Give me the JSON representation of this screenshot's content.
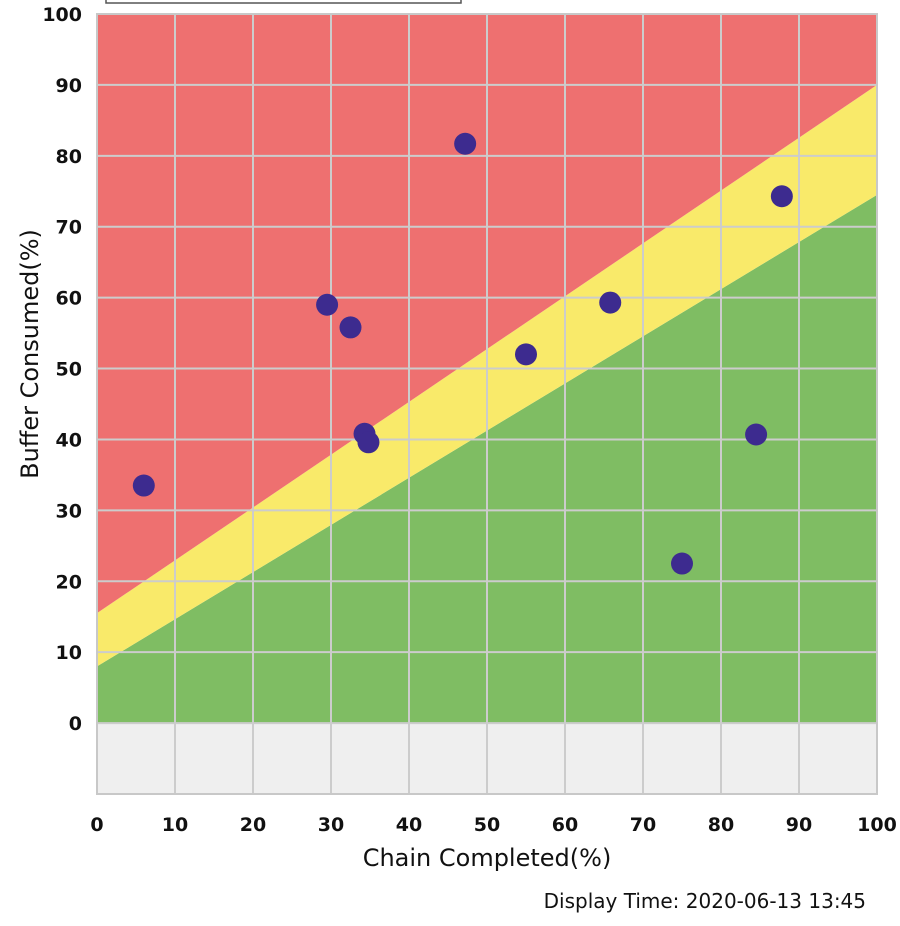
{
  "legend_box": {
    "visible": true,
    "position": "top",
    "text": ""
  },
  "chart_data": {
    "type": "scatter",
    "title": "",
    "xlabel": "Chain Completed(%)",
    "ylabel": "Buffer Consumed(%)",
    "xlim": [
      0,
      100
    ],
    "ylim": [
      -10,
      100
    ],
    "x_ticks": [
      "0",
      "10",
      "20",
      "30",
      "40",
      "50",
      "60",
      "70",
      "80",
      "90",
      "100"
    ],
    "y_ticks": [
      "100",
      "90",
      "80",
      "70",
      "60",
      "50",
      "40",
      "30",
      "20",
      "10",
      "0"
    ],
    "grid": true,
    "points": [
      {
        "x": 6,
        "y": 33.5
      },
      {
        "x": 29.5,
        "y": 59
      },
      {
        "x": 32.5,
        "y": 55.8
      },
      {
        "x": 34.3,
        "y": 40.8
      },
      {
        "x": 34.8,
        "y": 39.6
      },
      {
        "x": 47.2,
        "y": 81.7
      },
      {
        "x": 55,
        "y": 52
      },
      {
        "x": 65.8,
        "y": 59.3
      },
      {
        "x": 75,
        "y": 22.5
      },
      {
        "x": 84.5,
        "y": 40.7
      },
      {
        "x": 87.8,
        "y": 74.3
      }
    ],
    "zones": [
      {
        "name": "red",
        "color": "#ee7070",
        "boundary_at_x0": 15.5,
        "boundary_at_x100": 90
      },
      {
        "name": "yellow",
        "color": "#f9ea6a",
        "lower_at_x0": 8,
        "lower_at_x100": 74.5
      },
      {
        "name": "green",
        "color": "#7fbd63"
      }
    ],
    "colors": {
      "point": "#3d2b8f",
      "negative_region": "#efefef",
      "grid": "#cccccc"
    }
  },
  "footer": {
    "display_time": "Display Time: 2020-06-13 13:45"
  }
}
